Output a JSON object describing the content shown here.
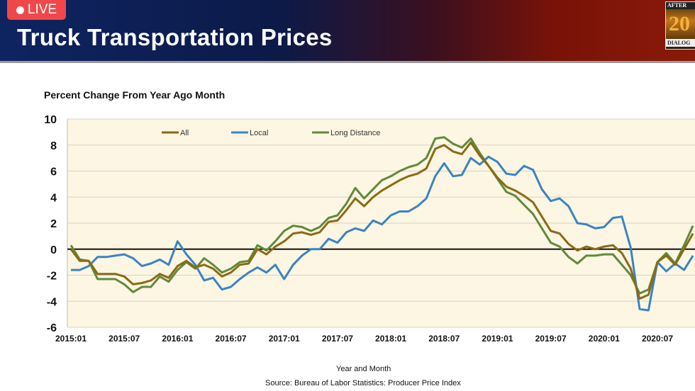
{
  "header": {
    "title": "Truck Transportation Prices",
    "live_label": "LIVE",
    "logo_text": [
      "AFTER",
      "20",
      "DIALOG"
    ]
  },
  "colors": {
    "all": "#8b6a14",
    "local": "#3a84c4",
    "long_distance": "#5f8a3a",
    "plot_bg": "#fdf6e3"
  },
  "chart_data": {
    "type": "line",
    "title": "Percent Change From Year Ago Month",
    "xlabel": "Year and Month",
    "ylabel": "",
    "source": "Source: Bureau of Labor Statistics: Producer Price Index",
    "ylim": [
      -6,
      10
    ],
    "yticks": [
      "10",
      "8",
      "6",
      "4",
      "2",
      "0",
      "-2",
      "-4",
      "-6"
    ],
    "xticks": [
      "2015:01",
      "2015:07",
      "2016:01",
      "2016:07",
      "2017:01",
      "2017:07",
      "2018:01",
      "2018:07",
      "2019:01",
      "2019:07",
      "2020:01",
      "2020:07"
    ],
    "x_start": "2015:01",
    "x_frequency": "monthly",
    "grid": true,
    "legend_placement": "top",
    "series": [
      {
        "name": "All",
        "values": [
          0.0,
          -0.9,
          -0.9,
          -1.9,
          -1.9,
          -1.9,
          -2.1,
          -2.7,
          -2.6,
          -2.4,
          -1.9,
          -2.2,
          -1.3,
          -0.9,
          -1.4,
          -1.2,
          -1.5,
          -2.1,
          -1.8,
          -1.2,
          -1.1,
          0.0,
          -0.4,
          0.2,
          0.6,
          1.2,
          1.3,
          1.1,
          1.3,
          2.1,
          2.2,
          3.0,
          3.9,
          3.3,
          4.0,
          4.5,
          4.9,
          5.3,
          5.6,
          5.8,
          6.2,
          7.7,
          8.0,
          7.5,
          7.3,
          8.2,
          7.2,
          6.4,
          5.5,
          4.8,
          4.5,
          4.1,
          3.6,
          2.5,
          1.4,
          1.2,
          0.4,
          -0.1,
          0.2,
          0.0,
          0.2,
          0.3,
          -0.3,
          -1.5,
          -3.8,
          -3.5,
          -1.0,
          -0.5,
          -1.2,
          0.0,
          1.2
        ]
      },
      {
        "name": "Local",
        "values": [
          -1.6,
          -1.6,
          -1.3,
          -0.6,
          -0.6,
          -0.5,
          -0.4,
          -0.7,
          -1.3,
          -1.1,
          -0.8,
          -1.2,
          0.6,
          -0.4,
          -1.2,
          -2.4,
          -2.2,
          -3.1,
          -2.9,
          -2.3,
          -1.8,
          -1.4,
          -1.8,
          -1.2,
          -2.3,
          -1.2,
          -0.5,
          0.0,
          0.0,
          0.8,
          0.5,
          1.3,
          1.6,
          1.4,
          2.2,
          1.9,
          2.6,
          2.9,
          2.9,
          3.3,
          3.9,
          5.6,
          6.6,
          5.6,
          5.7,
          7.0,
          6.5,
          7.1,
          6.7,
          5.8,
          5.7,
          6.4,
          6.1,
          4.6,
          3.7,
          3.9,
          3.3,
          2.0,
          1.9,
          1.6,
          1.7,
          2.4,
          2.5,
          0.1,
          -4.6,
          -4.7,
          -1.0,
          -1.7,
          -1.1,
          -1.6,
          -0.5
        ]
      },
      {
        "name": "Long Distance",
        "values": [
          0.3,
          -0.8,
          -0.9,
          -2.3,
          -2.3,
          -2.3,
          -2.7,
          -3.3,
          -2.9,
          -2.9,
          -2.1,
          -2.5,
          -1.6,
          -1.0,
          -1.5,
          -0.7,
          -1.2,
          -1.8,
          -1.5,
          -1.0,
          -0.9,
          0.3,
          -0.1,
          0.6,
          1.4,
          1.8,
          1.7,
          1.4,
          1.7,
          2.4,
          2.6,
          3.5,
          4.7,
          3.9,
          4.6,
          5.3,
          5.6,
          6.0,
          6.3,
          6.5,
          7.0,
          8.5,
          8.6,
          8.1,
          7.8,
          8.5,
          7.4,
          6.4,
          5.4,
          4.4,
          4.1,
          3.4,
          2.7,
          1.6,
          0.5,
          0.2,
          -0.6,
          -1.1,
          -0.5,
          -0.5,
          -0.4,
          -0.4,
          -1.2,
          -2.0,
          -3.4,
          -3.1,
          -1.0,
          -0.3,
          -1.1,
          0.3,
          1.8
        ]
      }
    ]
  }
}
